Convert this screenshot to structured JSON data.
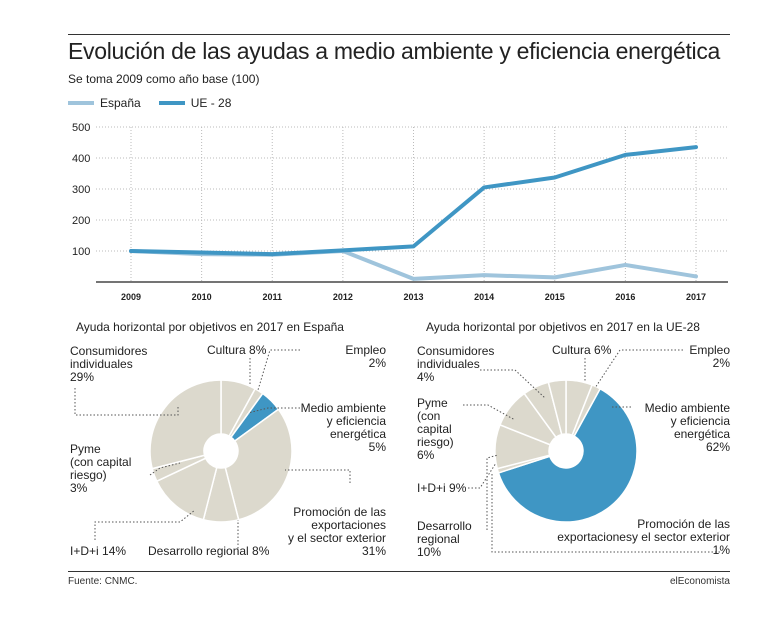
{
  "header": {
    "title": "Evolución de las ayudas a medio ambiente y eficiencia energética",
    "subtitle": "Se toma 2009 como año base (100)"
  },
  "footer": {
    "source": "Fuente: CNMC.",
    "brand": "elEconomista"
  },
  "colors": {
    "spain": "#9fc4dc",
    "eu": "#3f96c4",
    "pie_base": "#dcd9cd",
    "pie_highlight": "#3f96c4",
    "grid": "#bbbbbb"
  },
  "chart_data": [
    {
      "type": "line",
      "x": [
        "2009",
        "2010",
        "2011",
        "2012",
        "2013",
        "2014",
        "2015",
        "2016",
        "2017"
      ],
      "series": [
        {
          "name": "España",
          "values": [
            100,
            90,
            88,
            100,
            10,
            22,
            15,
            55,
            18
          ]
        },
        {
          "name": "UE - 28",
          "values": [
            100,
            95,
            90,
            102,
            115,
            305,
            337,
            410,
            435
          ]
        }
      ],
      "ylim": [
        0,
        500
      ],
      "yticks": [
        100,
        200,
        300,
        400,
        500
      ],
      "grid": true,
      "legend": "top-left"
    },
    {
      "type": "pie",
      "title": "Ayuda horizontal por objetivos en 2017 en España",
      "slices": [
        {
          "label": "Cultura",
          "value": 8
        },
        {
          "label": "Empleo",
          "value": 2
        },
        {
          "label": "Medio ambiente y eficiencia energética",
          "value": 5,
          "highlight": true
        },
        {
          "label": "Promoción de las exportaciones y el sector exterior",
          "value": 31
        },
        {
          "label": "Desarrollo regional",
          "value": 8
        },
        {
          "label": "I+D+i",
          "value": 14
        },
        {
          "label": "Pyme (con capital riesgo)",
          "value": 3
        },
        {
          "label": "Consumidores individuales",
          "value": 29
        }
      ]
    },
    {
      "type": "pie",
      "title": "Ayuda horizontal  por objetivos en 2017 en la UE-28",
      "slices": [
        {
          "label": "Cultura",
          "value": 6
        },
        {
          "label": "Empleo",
          "value": 2
        },
        {
          "label": "Medio ambiente y eficiencia energética",
          "value": 62,
          "highlight": true
        },
        {
          "label": "Promoción de las exportacionesy el sector exterior",
          "value": 1
        },
        {
          "label": "Desarrollo regional",
          "value": 10
        },
        {
          "label": "I+D+i",
          "value": 9
        },
        {
          "label": "Pyme (con capital riesgo)",
          "value": 6
        },
        {
          "label": "Consumidores individuales",
          "value": 4
        }
      ]
    }
  ],
  "pie_labels": {
    "es": {
      "consumidores_1": "Consumidores",
      "consumidores_2": "individuales",
      "consumidores_pct": "29%",
      "cultura": "Cultura 8%",
      "empleo": "Empleo",
      "empleo_pct": "2%",
      "medio_1": "Medio ambiente",
      "medio_2": "y eficiencia",
      "medio_3": "energética",
      "medio_pct": "5%",
      "pyme_1": "Pyme",
      "pyme_2": "(con capital",
      "pyme_3": "riesgo)",
      "pyme_pct": "3%",
      "promo_1": "Promoción de las",
      "promo_2": "exportaciones",
      "promo_3": "y el sector exterior",
      "promo_pct": "31%",
      "idi": "I+D+i 14%",
      "desarrollo": "Desarrollo regional 8%"
    },
    "eu": {
      "consumidores_1": "Consumidores",
      "consumidores_2": "individuales",
      "consumidores_pct": "4%",
      "cultura": "Cultura 6%",
      "empleo": "Empleo",
      "empleo_pct": "2%",
      "medio_1": "Medio ambiente",
      "medio_2": "y eficiencia",
      "medio_3": "energética",
      "medio_pct": "62%",
      "pyme_1": "Pyme",
      "pyme_2": "(con",
      "pyme_3": "capital",
      "pyme_4": "riesgo)",
      "pyme_pct": "6%",
      "idi": "I+D+i 9%",
      "desarrollo_1": "Desarrollo",
      "desarrollo_2": "regional",
      "desarrollo_pct": "10%",
      "promo_1": "Promoción de las",
      "promo_2": "exportacionesy el sector exterior",
      "promo_pct": "1%"
    }
  }
}
